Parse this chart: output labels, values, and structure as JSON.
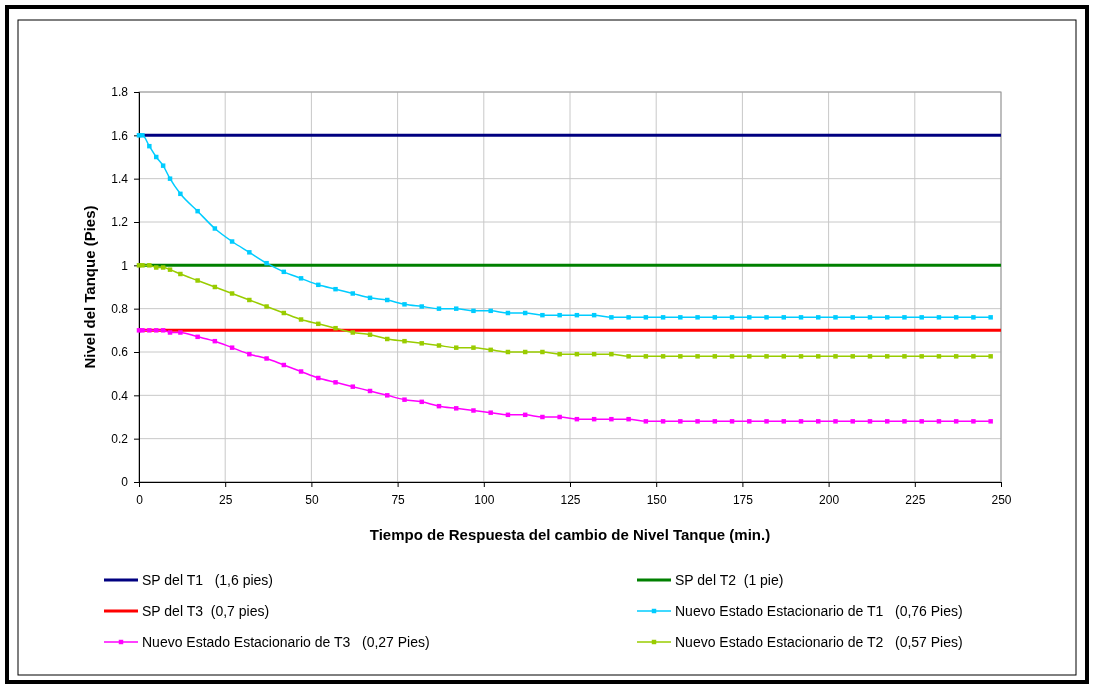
{
  "chart_data": {
    "type": "line",
    "xlabel": "Tiempo de Respuesta del cambio de Nivel Tanque (min.)",
    "ylabel": "Nivel del Tanque (Pies)",
    "xlim": [
      0,
      250
    ],
    "xticks": [
      0,
      25,
      50,
      75,
      100,
      125,
      150,
      175,
      200,
      225,
      250
    ],
    "ylim": [
      0,
      1.8
    ],
    "yticks": [
      0,
      0.2,
      0.4,
      0.6,
      0.8,
      1,
      1.2,
      1.4,
      1.6,
      1.8
    ],
    "grid": true,
    "legend": "bottom",
    "series": [
      {
        "name": "SP del T1   (1,6 pies)",
        "color": "#000080",
        "marker": "none",
        "x": [
          0,
          250
        ],
        "values": [
          1.6,
          1.6
        ]
      },
      {
        "name": "SP del T2  (1 pie)",
        "color": "#008000",
        "marker": "none",
        "x": [
          0,
          250
        ],
        "values": [
          1,
          1
        ]
      },
      {
        "name": "SP del T3  (0,7 pies)",
        "color": "#ff0000",
        "marker": "none",
        "x": [
          0,
          250
        ],
        "values": [
          0.7,
          0.7
        ]
      },
      {
        "name": "Nuevo Estado Estacionario de T1   (0,76 Pies)",
        "color": "#00ccff",
        "marker": "square",
        "x": [
          0,
          1,
          3,
          5,
          7,
          9,
          12,
          17,
          22,
          27,
          32,
          37,
          42,
          47,
          52,
          57,
          62,
          67,
          72,
          77,
          82,
          87,
          92,
          97,
          102,
          107,
          112,
          117,
          122,
          127,
          132,
          137,
          142,
          147,
          152,
          157,
          162,
          167,
          172,
          177,
          182,
          187,
          192,
          197,
          202,
          207,
          212,
          217,
          222,
          227,
          232,
          237,
          242,
          247
        ],
        "values": [
          1.6,
          1.6,
          1.55,
          1.5,
          1.46,
          1.4,
          1.33,
          1.25,
          1.17,
          1.11,
          1.06,
          1.01,
          0.97,
          0.94,
          0.91,
          0.89,
          0.87,
          0.85,
          0.84,
          0.82,
          0.81,
          0.8,
          0.8,
          0.79,
          0.79,
          0.78,
          0.78,
          0.77,
          0.77,
          0.77,
          0.77,
          0.76,
          0.76,
          0.76,
          0.76,
          0.76,
          0.76,
          0.76,
          0.76,
          0.76,
          0.76,
          0.76,
          0.76,
          0.76,
          0.76,
          0.76,
          0.76,
          0.76,
          0.76,
          0.76,
          0.76,
          0.76,
          0.76,
          0.76
        ]
      },
      {
        "name": "Nuevo Estado Estacionario de T3   (0,27 Pies)",
        "color": "#ff00ff",
        "marker": "square",
        "x": [
          0,
          1,
          3,
          5,
          7,
          9,
          12,
          17,
          22,
          27,
          32,
          37,
          42,
          47,
          52,
          57,
          62,
          67,
          72,
          77,
          82,
          87,
          92,
          97,
          102,
          107,
          112,
          117,
          122,
          127,
          132,
          137,
          142,
          147,
          152,
          157,
          162,
          167,
          172,
          177,
          182,
          187,
          192,
          197,
          202,
          207,
          212,
          217,
          222,
          227,
          232,
          237,
          242,
          247
        ],
        "values": [
          0.7,
          0.7,
          0.7,
          0.7,
          0.7,
          0.69,
          0.69,
          0.67,
          0.65,
          0.62,
          0.59,
          0.57,
          0.54,
          0.51,
          0.48,
          0.46,
          0.44,
          0.42,
          0.4,
          0.38,
          0.37,
          0.35,
          0.34,
          0.33,
          0.32,
          0.31,
          0.31,
          0.3,
          0.3,
          0.29,
          0.29,
          0.29,
          0.29,
          0.28,
          0.28,
          0.28,
          0.28,
          0.28,
          0.28,
          0.28,
          0.28,
          0.28,
          0.28,
          0.28,
          0.28,
          0.28,
          0.28,
          0.28,
          0.28,
          0.28,
          0.28,
          0.28,
          0.28,
          0.28
        ]
      },
      {
        "name": "Nuevo Estado Estacionario de T2   (0,57 Pies)",
        "color": "#99cc00",
        "marker": "square",
        "x": [
          0,
          1,
          3,
          5,
          7,
          9,
          12,
          17,
          22,
          27,
          32,
          37,
          42,
          47,
          52,
          57,
          62,
          67,
          72,
          77,
          82,
          87,
          92,
          97,
          102,
          107,
          112,
          117,
          122,
          127,
          132,
          137,
          142,
          147,
          152,
          157,
          162,
          167,
          172,
          177,
          182,
          187,
          192,
          197,
          202,
          207,
          212,
          217,
          222,
          227,
          232,
          237,
          242,
          247
        ],
        "values": [
          1,
          1,
          1,
          0.99,
          0.99,
          0.98,
          0.96,
          0.93,
          0.9,
          0.87,
          0.84,
          0.81,
          0.78,
          0.75,
          0.73,
          0.71,
          0.69,
          0.68,
          0.66,
          0.65,
          0.64,
          0.63,
          0.62,
          0.62,
          0.61,
          0.6,
          0.6,
          0.6,
          0.59,
          0.59,
          0.59,
          0.59,
          0.58,
          0.58,
          0.58,
          0.58,
          0.58,
          0.58,
          0.58,
          0.58,
          0.58,
          0.58,
          0.58,
          0.58,
          0.58,
          0.58,
          0.58,
          0.58,
          0.58,
          0.58,
          0.58,
          0.58,
          0.58,
          0.58
        ]
      }
    ]
  }
}
